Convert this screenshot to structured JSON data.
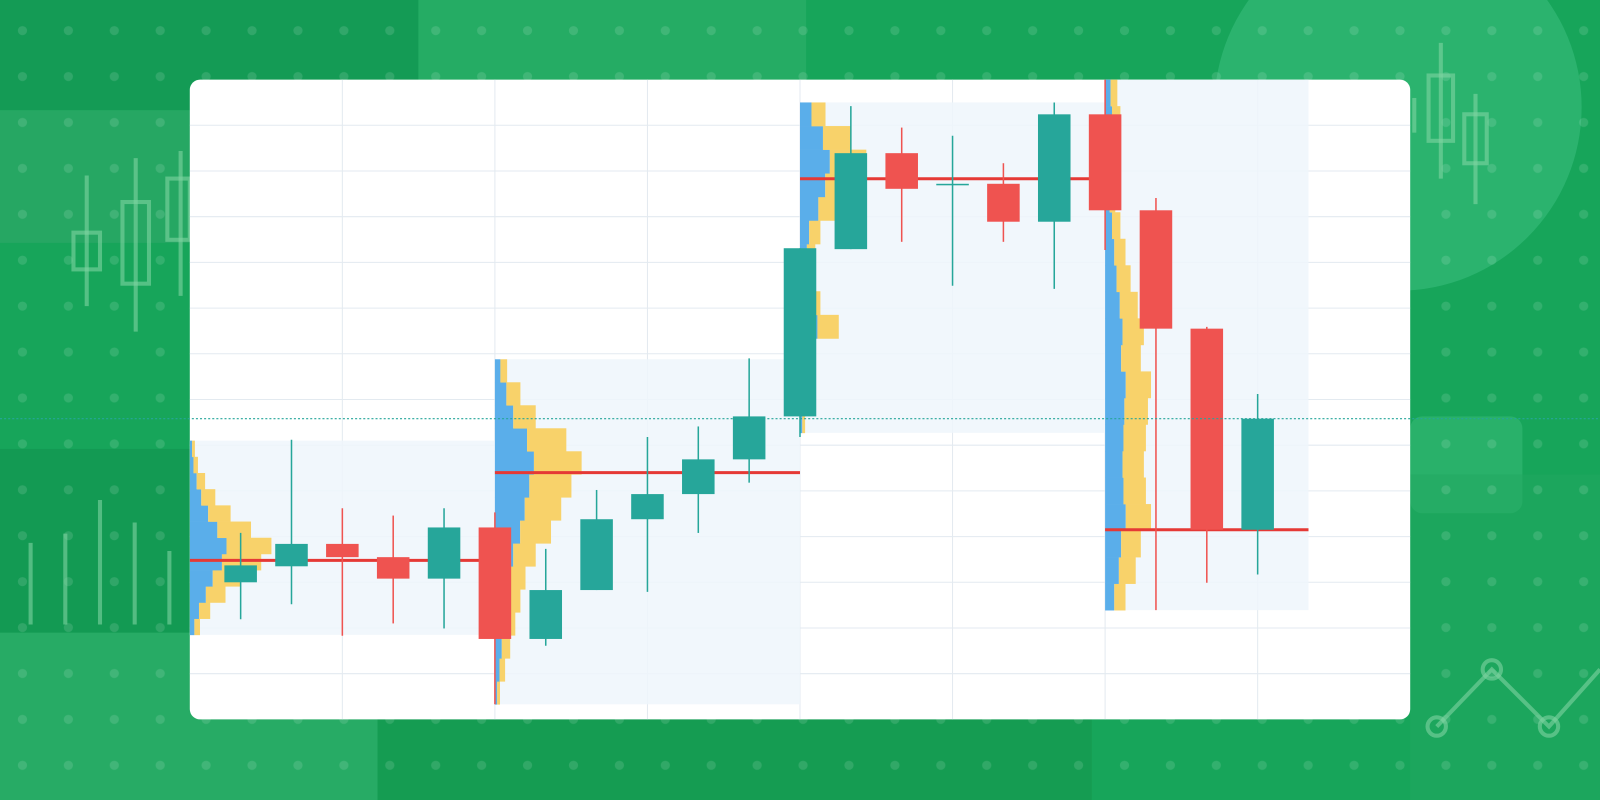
{
  "chart_data": {
    "type": "candlestick",
    "xlim": [
      -1,
      23
    ],
    "xticks": [
      2,
      5,
      8,
      11,
      14,
      17,
      20
    ],
    "ylim": [
      0,
      14
    ],
    "yticks": [
      1,
      2,
      3,
      4,
      5,
      6,
      7,
      8,
      9,
      10,
      11,
      12,
      13
    ],
    "grid": true,
    "up_color": "#26a69a",
    "down_color": "#ef5350",
    "open": [
      3.0,
      3.35,
      3.84,
      3.55,
      3.08,
      4.2,
      1.76,
      2.83,
      4.38,
      4.93,
      5.69,
      6.63,
      10.29,
      12.39,
      11.72,
      11.72,
      10.89,
      13.24,
      11.14,
      8.55,
      4.15
    ],
    "high": [
      4.08,
      6.12,
      4.62,
      4.46,
      4.62,
      4.53,
      3.73,
      5.02,
      6.18,
      6.41,
      7.9,
      10.31,
      13.42,
      12.95,
      12.77,
      12.17,
      13.5,
      14.0,
      11.41,
      8.59,
      7.12
    ],
    "low": [
      2.19,
      2.52,
      1.83,
      2.1,
      1.99,
      0.33,
      1.61,
      2.83,
      2.79,
      4.08,
      5.18,
      6.18,
      10.29,
      10.45,
      9.49,
      10.45,
      9.42,
      10.27,
      2.39,
      2.99,
      3.17
    ],
    "close": [
      3.37,
      3.84,
      3.55,
      3.08,
      4.2,
      1.76,
      2.83,
      4.38,
      4.93,
      5.69,
      6.63,
      10.31,
      12.39,
      11.61,
      11.72,
      10.89,
      13.24,
      11.14,
      8.55,
      4.15,
      6.58
    ],
    "last_price": 6.58,
    "profile_colors": {
      "area": "#eef6fc",
      "buy": "#5aaeea",
      "sell": "#f8d26a",
      "poc": "#e53935"
    },
    "profiles": [
      {
        "start": -1,
        "end": 5,
        "low": 1.85,
        "high": 6.1,
        "poc": 3.48,
        "volumes": [
          10,
          20,
          35,
          50,
          70,
          80,
          60,
          40,
          25,
          15,
          8,
          5
        ]
      },
      {
        "start": 5,
        "end": 11,
        "low": 0.33,
        "high": 7.88,
        "poc": 5.4,
        "volumes": [
          5,
          10,
          15,
          20,
          25,
          30,
          40,
          55,
          65,
          75,
          85,
          70,
          40,
          25,
          12
        ]
      },
      {
        "start": 11,
        "end": 17,
        "low": 6.27,
        "high": 13.5,
        "poc": 11.83,
        "volumes": [
          5,
          8,
          10,
          12,
          38,
          20,
          15,
          15,
          20,
          40,
          55,
          65,
          50,
          25
        ]
      },
      {
        "start": 17,
        "end": 21,
        "low": 2.39,
        "high": 14.0,
        "poc": 4.15,
        "volumes": [
          20,
          30,
          35,
          45,
          40,
          38,
          40,
          42,
          45,
          35,
          38,
          32,
          25,
          20,
          15,
          10,
          8,
          10,
          15,
          12
        ]
      }
    ]
  }
}
